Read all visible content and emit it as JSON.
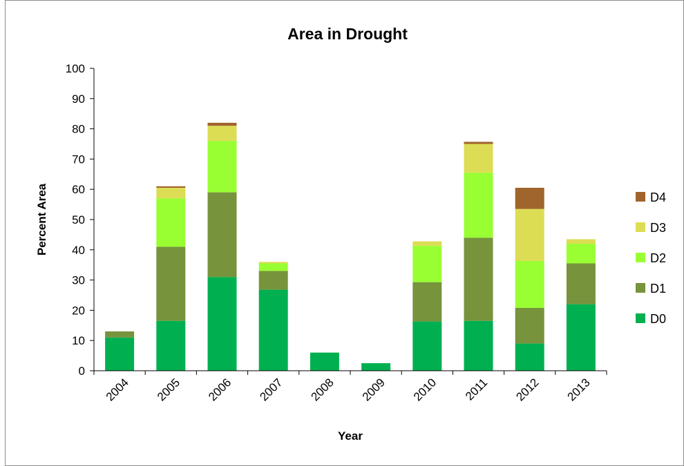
{
  "chart_data": {
    "type": "bar",
    "stacked": true,
    "title": "Area in Drought",
    "xlabel": "Year",
    "ylabel": "Percent Area",
    "ylim": [
      0,
      100
    ],
    "yticks": [
      "0",
      "10",
      "20",
      "30",
      "40",
      "50",
      "60",
      "70",
      "80",
      "90",
      "100"
    ],
    "grid": false,
    "legend_position": "right",
    "categories": [
      "2004",
      "2005",
      "2006",
      "2007",
      "2008",
      "2009",
      "2010",
      "2011",
      "2012",
      "2013"
    ],
    "series": [
      {
        "name": "D0",
        "color": "#00b050",
        "values": [
          11,
          16.5,
          31,
          26.8,
          6,
          2.5,
          16.3,
          16.5,
          9,
          22
        ]
      },
      {
        "name": "D1",
        "color": "#77933c",
        "values": [
          2,
          24.5,
          28,
          6.2,
          0,
          0,
          13,
          27.5,
          11.8,
          13.5
        ]
      },
      {
        "name": "D2",
        "color": "#99ff33",
        "values": [
          0,
          16,
          17,
          2.5,
          0,
          0,
          12,
          21.5,
          15.5,
          6.5
        ]
      },
      {
        "name": "D3",
        "color": "#dddd55",
        "values": [
          0,
          3.5,
          5,
          0.5,
          0,
          0,
          1.5,
          9.5,
          17.2,
          1.5
        ]
      },
      {
        "name": "D4",
        "color": "#a0642d",
        "values": [
          0,
          0.5,
          1,
          0,
          0,
          0,
          0,
          0.7,
          7,
          0
        ]
      }
    ]
  }
}
